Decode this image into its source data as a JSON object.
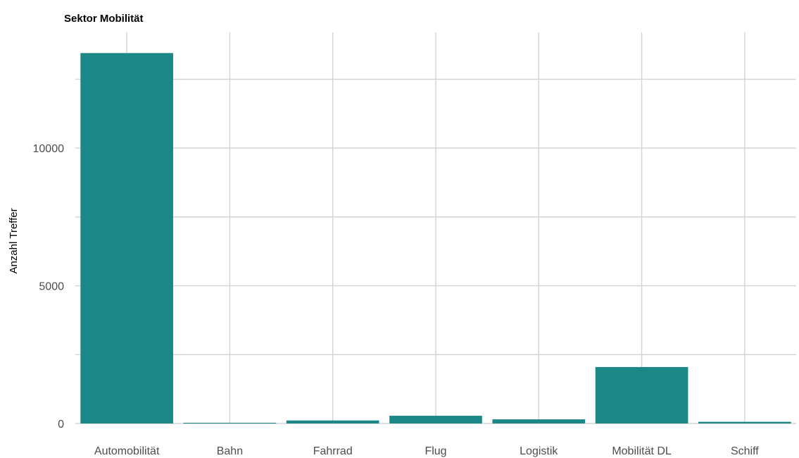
{
  "chart_data": {
    "type": "bar",
    "title": "Sektor Mobilität",
    "xlabel": "",
    "ylabel": "Anzahl Treffer",
    "categories": [
      "Automobilität",
      "Bahn",
      "Fahrrad",
      "Flug",
      "Logistik",
      "Mobilität DL",
      "Schiff"
    ],
    "values": [
      13450,
      15,
      110,
      280,
      150,
      2050,
      60
    ],
    "ylim": [
      0,
      14200
    ],
    "yticks": [
      0,
      5000,
      10000
    ],
    "ytick_labels": [
      "0",
      "5000",
      "10000"
    ],
    "grid": true,
    "legend": "none",
    "bar_color": "#1b8787",
    "grid_color": "#d3d3d3"
  }
}
